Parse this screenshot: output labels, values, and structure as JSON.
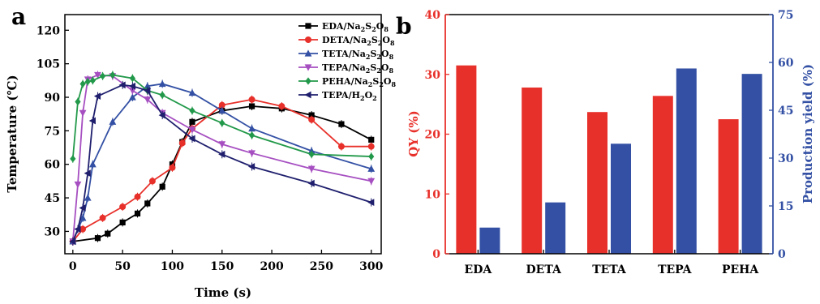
{
  "panel_labels": {
    "a": "a",
    "b": "b"
  },
  "chart_data": [
    {
      "type": "line",
      "xlabel": "Time (s)",
      "ylabel": "Temperature (℃)",
      "xlim": [
        -8,
        310
      ],
      "ylim": [
        20,
        127
      ],
      "xticks": [
        "0",
        "50",
        "100",
        "150",
        "200",
        "250",
        "300"
      ],
      "yticks": [
        "30",
        "45",
        "60",
        "75",
        "90",
        "105",
        "120"
      ],
      "legend_position": "top-right",
      "series": [
        {
          "name": "EDA/Na2S2O8",
          "color": "#000000",
          "marker": "square",
          "x": [
            0,
            25,
            35,
            50,
            65,
            75,
            90,
            100,
            110,
            120,
            150,
            180,
            210,
            240,
            270,
            300
          ],
          "y": [
            25.5,
            27,
            29,
            34,
            38,
            42.5,
            50,
            60,
            70,
            79,
            84,
            86,
            85,
            82,
            78,
            71
          ]
        },
        {
          "name": "DETA/Na2S2O8",
          "color": "#e8302a",
          "marker": "circle",
          "x": [
            0,
            10,
            30,
            50,
            65,
            80,
            100,
            110,
            120,
            150,
            180,
            210,
            240,
            270,
            300
          ],
          "y": [
            25.5,
            31,
            36,
            41,
            45.5,
            52.5,
            58.5,
            69.5,
            76,
            86.5,
            89,
            86,
            80,
            68,
            68
          ]
        },
        {
          "name": "TETA/Na2S2O8",
          "color": "#3350a4",
          "marker": "triangle-up",
          "x": [
            0,
            10,
            15,
            20,
            40,
            60,
            75,
            90,
            120,
            150,
            180,
            240,
            300
          ],
          "y": [
            25.5,
            36,
            45,
            60,
            79,
            90,
            95,
            96,
            92,
            84,
            76,
            66,
            58
          ]
        },
        {
          "name": "TEPA/Na2S2O8",
          "color": "#a64fc1",
          "marker": "triangle-down",
          "x": [
            0,
            5,
            10,
            15,
            25,
            40,
            60,
            75,
            90,
            120,
            150,
            180,
            240,
            300
          ],
          "y": [
            25.5,
            51,
            83,
            98,
            100,
            99.5,
            93,
            89,
            83,
            75.5,
            69,
            65,
            58,
            52.5
          ]
        },
        {
          "name": "PEHA/Na2S2O8",
          "color": "#22994a",
          "marker": "diamond",
          "x": [
            0,
            5,
            10,
            15,
            20,
            30,
            40,
            60,
            75,
            90,
            120,
            150,
            180,
            240,
            300
          ],
          "y": [
            62.5,
            88,
            96,
            97,
            97.5,
            99.5,
            100,
            98.5,
            93,
            91,
            84,
            78.5,
            73,
            64.5,
            63.5
          ]
        },
        {
          "name": "TEPA/H2O2",
          "color": "#1f1f6e",
          "marker": "triangle-left",
          "x": [
            0,
            5,
            10,
            15,
            20,
            25,
            50,
            60,
            75,
            90,
            120,
            150,
            180,
            240,
            300
          ],
          "y": [
            25.5,
            31,
            40.5,
            56,
            79.5,
            90.5,
            95.5,
            95,
            93,
            82,
            71.5,
            64.5,
            59,
            51.5,
            43
          ]
        }
      ]
    },
    {
      "type": "bar",
      "categories": [
        "EDA",
        "DETA",
        "TETA",
        "TEPA",
        "PEHA"
      ],
      "ylabel_left": "QY (%)",
      "ylabel_right": "Production yield (%)",
      "ylim_left": [
        0,
        40
      ],
      "ylim_right": [
        0,
        75
      ],
      "yticks_left": [
        "0",
        "10",
        "20",
        "30",
        "40"
      ],
      "yticks_right": [
        "0",
        "15",
        "30",
        "45",
        "60",
        "75"
      ],
      "left_color": "#e8302a",
      "right_color": "#3350a4",
      "series": [
        {
          "axis": "left",
          "values": [
            31.5,
            27.8,
            23.7,
            26.4,
            22.5
          ]
        },
        {
          "axis": "right",
          "values": [
            8.2,
            16.1,
            34.5,
            58.1,
            56.4
          ]
        }
      ]
    }
  ]
}
